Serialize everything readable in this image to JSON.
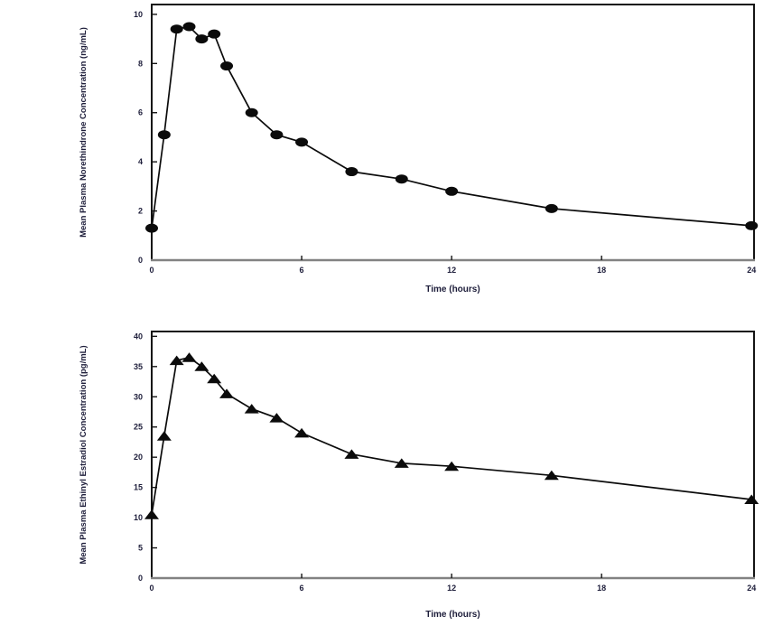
{
  "page": {
    "background": "#ffffff",
    "text_color": "#1d1d3a",
    "series_color": "#0b0b0b",
    "frame_color": "#141414",
    "baseline_color": "#828282"
  },
  "chart_data": [
    {
      "id": "norethindrone",
      "type": "line",
      "marker": "circle",
      "title": "",
      "xlabel": "Time (hours)",
      "ylabel": "Mean Plasma Norethindrone Concentration (ng/mL)",
      "x": [
        0,
        0.5,
        1,
        1.5,
        2,
        2.5,
        3,
        4,
        5,
        6,
        8,
        10,
        12,
        16,
        24
      ],
      "y": [
        1.3,
        5.1,
        9.4,
        9.5,
        9.0,
        9.2,
        7.9,
        6.0,
        5.1,
        4.8,
        3.6,
        3.3,
        2.8,
        2.1,
        1.4
      ],
      "xticks": [
        0,
        6,
        12,
        18,
        24
      ],
      "yticks": [
        0,
        2,
        4,
        6,
        8,
        10
      ],
      "xlim": [
        0,
        24.1
      ],
      "ylim": [
        0,
        10.4
      ],
      "grid": false,
      "legend": "none"
    },
    {
      "id": "ethinyl-estradiol",
      "type": "line",
      "marker": "triangle",
      "title": "",
      "xlabel": "Time (hours)",
      "ylabel": "Mean Plasma Ethinyl Estradiol Concentration (pg/mL)",
      "x": [
        0,
        0.5,
        1,
        1.5,
        2,
        2.5,
        3,
        4,
        5,
        6,
        8,
        10,
        12,
        16,
        24
      ],
      "y": [
        10.5,
        23.5,
        36,
        36.5,
        35,
        33,
        30.5,
        28,
        26.5,
        24,
        20.5,
        19,
        18.5,
        17,
        13
      ],
      "xticks": [
        0,
        6,
        12,
        18,
        24
      ],
      "yticks": [
        0,
        5,
        10,
        15,
        20,
        25,
        30,
        35,
        40
      ],
      "xlim": [
        0,
        24.1
      ],
      "ylim": [
        0,
        40.8
      ],
      "grid": false,
      "legend": "none"
    }
  ]
}
